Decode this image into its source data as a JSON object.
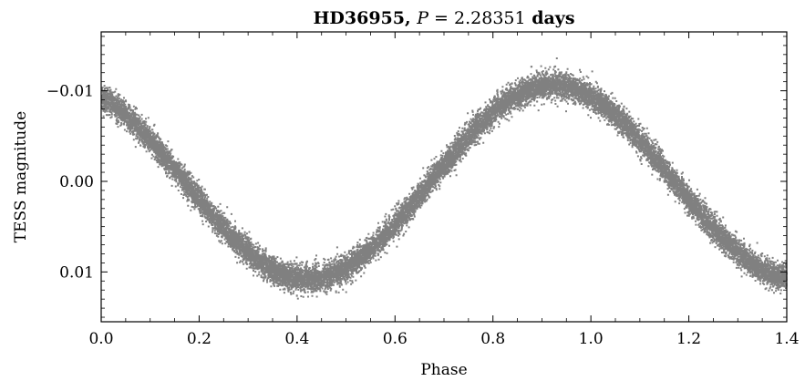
{
  "chart_data": {
    "type": "scatter",
    "title": {
      "prefix": "HD36955, ",
      "period_symbol": "P",
      "equals": " = ",
      "period_value": "2.28351",
      "unit": " days"
    },
    "xlabel": "Phase",
    "ylabel": "TESS magnitude",
    "xlim": [
      0.0,
      1.4
    ],
    "ylim": [
      0.0155,
      -0.0165
    ],
    "y_inverted": true,
    "x_ticks": [
      0.0,
      0.2,
      0.4,
      0.6,
      0.8,
      1.0,
      1.2,
      1.4
    ],
    "x_tick_labels": [
      "0.0",
      "0.2",
      "0.4",
      "0.6",
      "0.8",
      "1.0",
      "1.2",
      "1.4"
    ],
    "y_ticks": [
      -0.01,
      0.0,
      0.01
    ],
    "y_tick_labels": [
      "−0.01",
      "0.00",
      "0.01"
    ],
    "grid": false,
    "legend": "none",
    "point_color": "#808080",
    "series": [
      {
        "model": "sinusoid",
        "mean_mag": 0.0,
        "amplitude_mag": 0.0107,
        "max_brightness_phase": 0.92,
        "period_in_phase": 1.0,
        "scatter_mag": 0.0013,
        "phase_range": [
          0.0,
          1.4
        ],
        "n_points": 18000
      }
    ]
  }
}
